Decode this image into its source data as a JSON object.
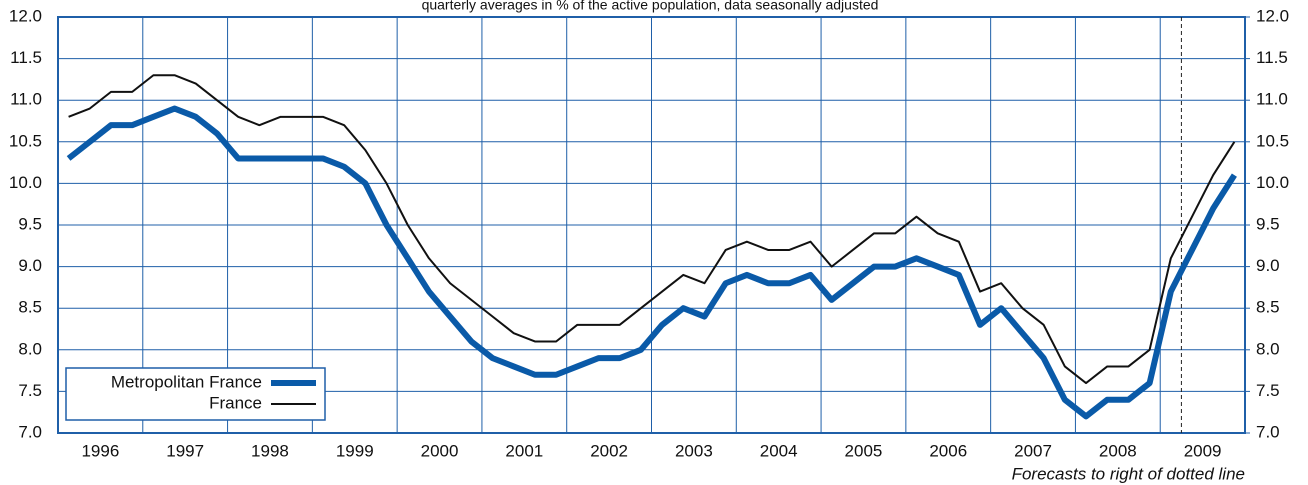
{
  "chart_data": {
    "type": "line",
    "title": "quarterly averages in % of the active population, data seasonally adjusted",
    "footnote": "Forecasts to right of dotted line",
    "x": [
      1996.125,
      1996.375,
      1996.625,
      1996.875,
      1997.125,
      1997.375,
      1997.625,
      1997.875,
      1998.125,
      1998.375,
      1998.625,
      1998.875,
      1999.125,
      1999.375,
      1999.625,
      1999.875,
      2000.125,
      2000.375,
      2000.625,
      2000.875,
      2001.125,
      2001.375,
      2001.625,
      2001.875,
      2002.125,
      2002.375,
      2002.625,
      2002.875,
      2003.125,
      2003.375,
      2003.625,
      2003.875,
      2004.125,
      2004.375,
      2004.625,
      2004.875,
      2005.125,
      2005.375,
      2005.625,
      2005.875,
      2006.125,
      2006.375,
      2006.625,
      2006.875,
      2007.125,
      2007.375,
      2007.625,
      2007.875,
      2008.125,
      2008.375,
      2008.625,
      2008.875,
      2009.125,
      2009.375,
      2009.625,
      2009.875
    ],
    "series": [
      {
        "name": "Metropolitan France",
        "color": "#0a5aa8",
        "width": 6,
        "values": [
          10.3,
          10.5,
          10.7,
          10.7,
          10.8,
          10.9,
          10.8,
          10.6,
          10.3,
          10.3,
          10.3,
          10.3,
          10.3,
          10.2,
          10.0,
          9.5,
          9.1,
          8.7,
          8.4,
          8.1,
          7.9,
          7.8,
          7.7,
          7.7,
          7.8,
          7.9,
          7.9,
          8.0,
          8.3,
          8.5,
          8.4,
          8.8,
          8.9,
          8.8,
          8.8,
          8.9,
          8.6,
          8.8,
          9.0,
          9.0,
          9.1,
          9.0,
          8.9,
          8.3,
          8.5,
          8.2,
          7.9,
          7.4,
          7.2,
          7.4,
          7.4,
          7.6,
          8.7,
          9.2,
          9.7,
          10.1
        ]
      },
      {
        "name": "France",
        "color": "#111111",
        "width": 2,
        "values": [
          10.8,
          10.9,
          11.1,
          11.1,
          11.3,
          11.3,
          11.2,
          11.0,
          10.8,
          10.7,
          10.8,
          10.8,
          10.8,
          10.7,
          10.4,
          10.0,
          9.5,
          9.1,
          8.8,
          8.6,
          8.4,
          8.2,
          8.1,
          8.1,
          8.3,
          8.3,
          8.3,
          8.5,
          8.7,
          8.9,
          8.8,
          9.2,
          9.3,
          9.2,
          9.2,
          9.3,
          9.0,
          9.2,
          9.4,
          9.4,
          9.6,
          9.4,
          9.3,
          8.7,
          8.8,
          8.5,
          8.3,
          7.8,
          7.6,
          7.8,
          7.8,
          8.0,
          9.1,
          9.6,
          10.1,
          10.5
        ]
      }
    ],
    "xlim": [
      1996,
      2010
    ],
    "xticks": [
      1996,
      1997,
      1998,
      1999,
      2000,
      2001,
      2002,
      2003,
      2004,
      2005,
      2006,
      2007,
      2008,
      2009
    ],
    "ylim": [
      7,
      12
    ],
    "yticks": [
      {
        "value": 7,
        "label": "7.0"
      },
      {
        "value": 7.5,
        "label": "7.5"
      },
      {
        "value": 8,
        "label": "8.0"
      },
      {
        "value": 8.5,
        "label": "8.5"
      },
      {
        "value": 9,
        "label": "9.0"
      },
      {
        "value": 9.5,
        "label": "9.5"
      },
      {
        "value": 10,
        "label": "10.0"
      },
      {
        "value": 10.5,
        "label": "10.5"
      },
      {
        "value": 11,
        "label": "11.0"
      },
      {
        "value": 11.5,
        "label": "11.5"
      },
      {
        "value": 12,
        "label": "12.0"
      }
    ],
    "y2lim": [
      7,
      12
    ],
    "y2ticks": [
      {
        "value": 7,
        "label": "7.0"
      },
      {
        "value": 7.5,
        "label": "7.5"
      },
      {
        "value": 8,
        "label": "8.0"
      },
      {
        "value": 8.5,
        "label": "8.5"
      },
      {
        "value": 9,
        "label": "9.0"
      },
      {
        "value": 9.5,
        "label": "9.5"
      },
      {
        "value": 10,
        "label": "10.0"
      },
      {
        "value": 10.5,
        "label": "10.5"
      },
      {
        "value": 11,
        "label": "11.0"
      },
      {
        "value": 11.5,
        "label": "11.5"
      },
      {
        "value": 12,
        "label": "12.0"
      }
    ],
    "forecast_x": 2009.25,
    "grid": true,
    "legend": "lower left"
  }
}
